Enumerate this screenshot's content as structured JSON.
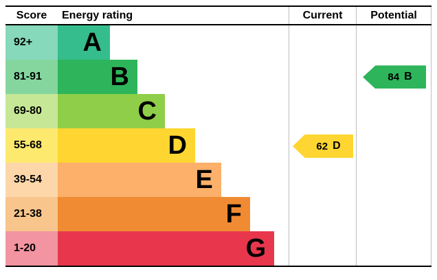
{
  "header": {
    "score": "Score",
    "energy_rating": "Energy rating",
    "current": "Current",
    "potential": "Potential"
  },
  "chart_data": {
    "type": "bar",
    "description": "EPC energy efficiency rating bands with current and potential ratings",
    "categories": [
      "A",
      "B",
      "C",
      "D",
      "E",
      "F",
      "G"
    ],
    "bands": [
      {
        "score": "92+",
        "letter": "A",
        "bar_color": "#35bd8d",
        "score_bg": "#86d9ba",
        "width_pct": 22.6
      },
      {
        "score": "81-91",
        "letter": "B",
        "bar_color": "#2eb55b",
        "score_bg": "#84d69e",
        "width_pct": 34.5
      },
      {
        "score": "69-80",
        "letter": "C",
        "bar_color": "#8fce49",
        "score_bg": "#c6e795",
        "width_pct": 46.4
      },
      {
        "score": "55-68",
        "letter": "D",
        "bar_color": "#fed531",
        "score_bg": "#fee96f",
        "width_pct": 59.5
      },
      {
        "score": "39-54",
        "letter": "E",
        "bar_color": "#fcb06a",
        "score_bg": "#fdd7a9",
        "width_pct": 70.8
      },
      {
        "score": "21-38",
        "letter": "F",
        "bar_color": "#f08b33",
        "score_bg": "#f8c58d",
        "width_pct": 83.3
      },
      {
        "score": "1-20",
        "letter": "G",
        "bar_color": "#e8374d",
        "score_bg": "#f294a1",
        "width_pct": 93.8
      }
    ],
    "current": {
      "value": "62",
      "letter": "D",
      "band_index": 3,
      "arrow_color": "#fed531"
    },
    "potential": {
      "value": "84",
      "letter": "B",
      "band_index": 1,
      "arrow_color": "#2eb55b"
    }
  }
}
